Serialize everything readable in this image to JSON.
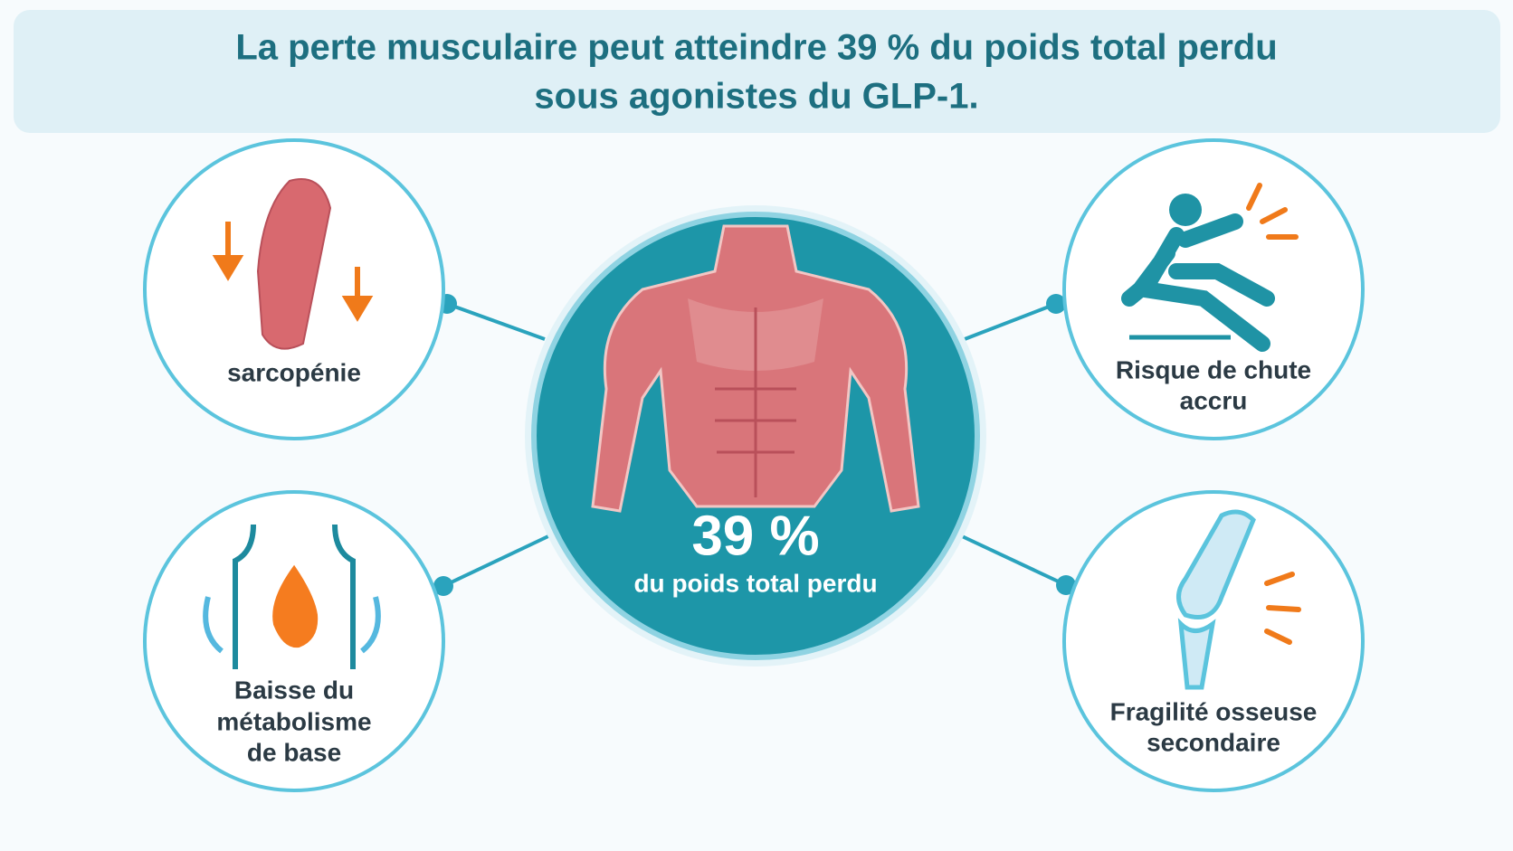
{
  "header": {
    "title": [
      "La perte musculaire peut atteindre 39 % du poids total perdu",
      "sous agonistes du GLP-1."
    ]
  },
  "center": {
    "figure": "39 %",
    "caption": "du poids total perdu"
  },
  "nodes": [
    {
      "label": [
        "sarcopénie"
      ]
    },
    {
      "label": [
        "Baisse du",
        "métabolisme",
        "de base"
      ]
    },
    {
      "label": [
        "Risque de chute",
        "accru"
      ]
    },
    {
      "label": [
        "Fragilité osseuse",
        "secondaire"
      ]
    }
  ]
}
